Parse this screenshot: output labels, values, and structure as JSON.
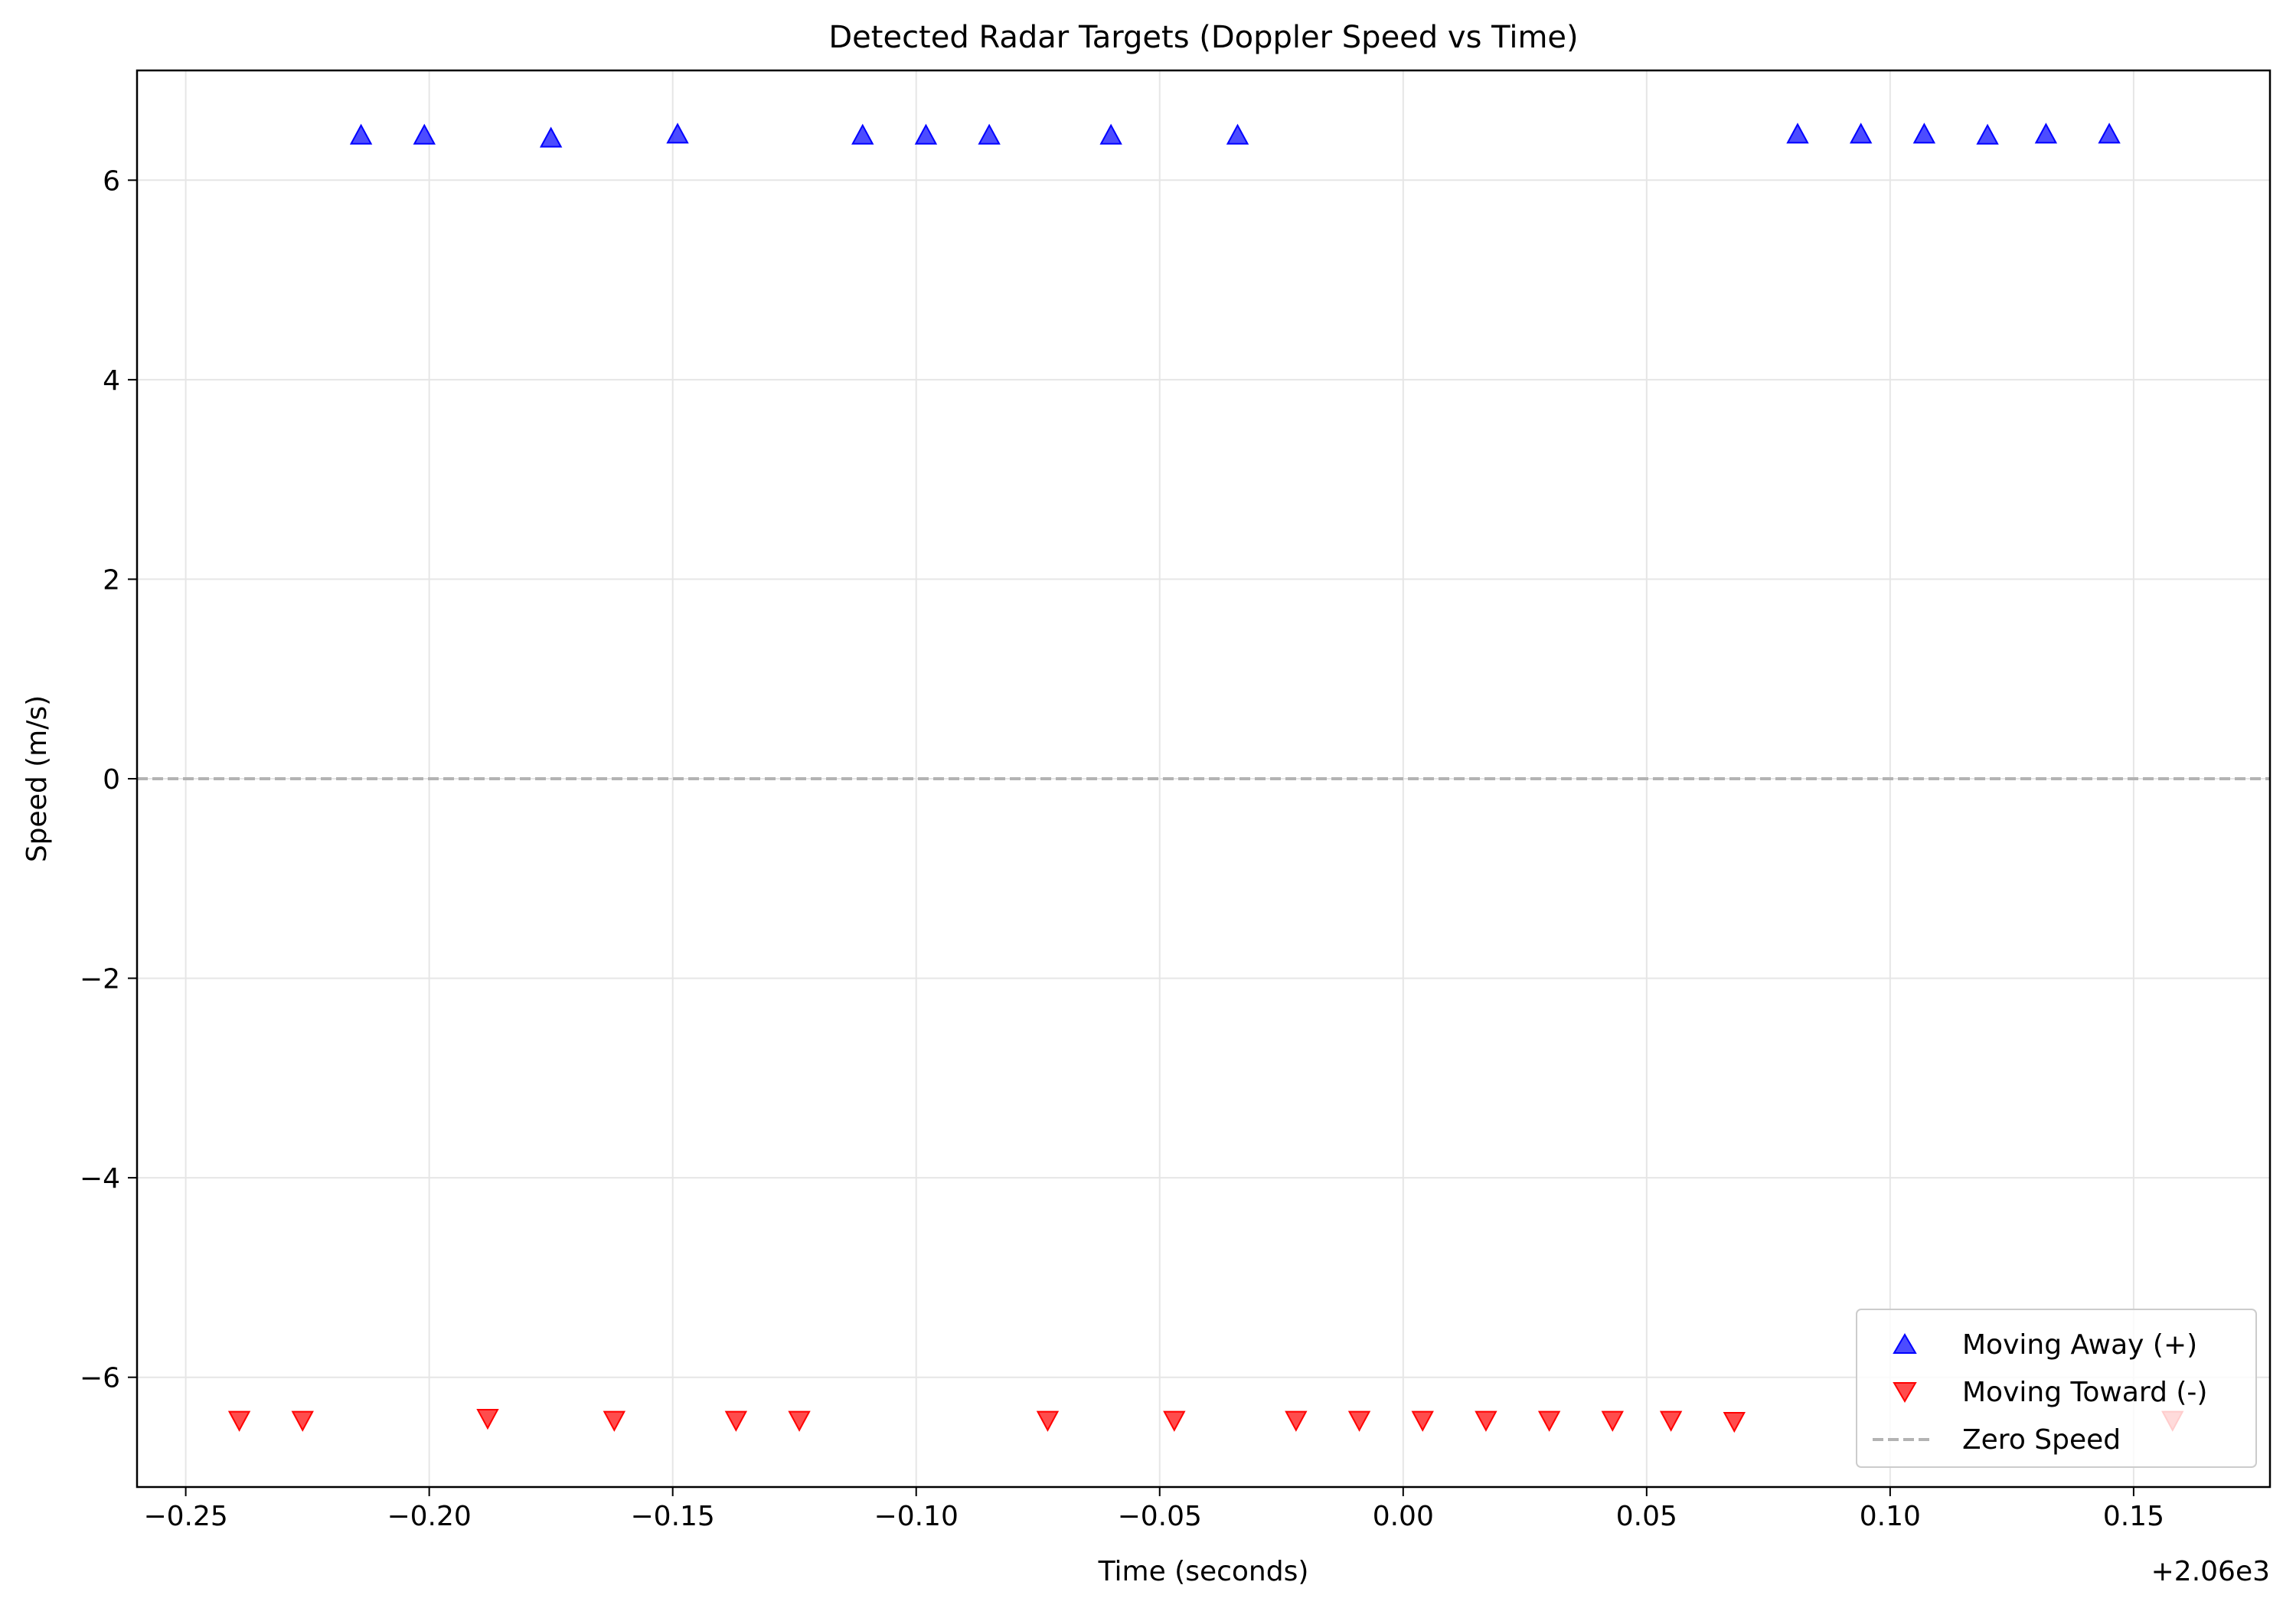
{
  "chart_data": {
    "type": "scatter",
    "title": "Detected Radar Targets (Doppler Speed vs Time)",
    "xlabel": "Time (seconds)",
    "ylabel": "Speed (m/s)",
    "x_offset_label": "+2.06e3",
    "xlim": [
      -0.26,
      0.178
    ],
    "ylim": [
      -7.1,
      7.1
    ],
    "x_ticks": [
      {
        "value": -0.25,
        "label": "−0.25"
      },
      {
        "value": -0.2,
        "label": "−0.20"
      },
      {
        "value": -0.15,
        "label": "−0.15"
      },
      {
        "value": -0.1,
        "label": "−0.10"
      },
      {
        "value": -0.05,
        "label": "−0.05"
      },
      {
        "value": 0.0,
        "label": "0.00"
      },
      {
        "value": 0.05,
        "label": "0.05"
      },
      {
        "value": 0.1,
        "label": "0.10"
      },
      {
        "value": 0.15,
        "label": "0.15"
      }
    ],
    "y_ticks": [
      {
        "value": 6,
        "label": "6"
      },
      {
        "value": 4,
        "label": "4"
      },
      {
        "value": 2,
        "label": "2"
      },
      {
        "value": 0,
        "label": "0"
      },
      {
        "value": -2,
        "label": "−2"
      },
      {
        "value": -4,
        "label": "−4"
      },
      {
        "value": -6,
        "label": "−6"
      }
    ],
    "grid": true,
    "legend_position": "bottom-right",
    "series": [
      {
        "name": "Moving Away (+)",
        "marker": "triangle-up",
        "color": "#0000ff",
        "points": [
          {
            "x": -0.214,
            "y": 6.45
          },
          {
            "x": -0.201,
            "y": 6.45
          },
          {
            "x": -0.175,
            "y": 6.42
          },
          {
            "x": -0.149,
            "y": 6.46
          },
          {
            "x": -0.111,
            "y": 6.45
          },
          {
            "x": -0.098,
            "y": 6.45
          },
          {
            "x": -0.085,
            "y": 6.45
          },
          {
            "x": -0.06,
            "y": 6.45
          },
          {
            "x": -0.034,
            "y": 6.45
          },
          {
            "x": 0.081,
            "y": 6.46
          },
          {
            "x": 0.094,
            "y": 6.46
          },
          {
            "x": 0.107,
            "y": 6.46
          },
          {
            "x": 0.12,
            "y": 6.45
          },
          {
            "x": 0.132,
            "y": 6.46
          },
          {
            "x": 0.145,
            "y": 6.46
          }
        ]
      },
      {
        "name": "Moving Toward (-)",
        "marker": "triangle-down",
        "color": "#ff0000",
        "points": [
          {
            "x": -0.239,
            "y": -6.43
          },
          {
            "x": -0.226,
            "y": -6.43
          },
          {
            "x": -0.188,
            "y": -6.41
          },
          {
            "x": -0.162,
            "y": -6.43
          },
          {
            "x": -0.137,
            "y": -6.43
          },
          {
            "x": -0.124,
            "y": -6.43
          },
          {
            "x": -0.073,
            "y": -6.43
          },
          {
            "x": -0.047,
            "y": -6.43
          },
          {
            "x": -0.022,
            "y": -6.43
          },
          {
            "x": -0.009,
            "y": -6.43
          },
          {
            "x": 0.004,
            "y": -6.43
          },
          {
            "x": 0.017,
            "y": -6.43
          },
          {
            "x": 0.03,
            "y": -6.43
          },
          {
            "x": 0.043,
            "y": -6.43
          },
          {
            "x": 0.055,
            "y": -6.43
          },
          {
            "x": 0.068,
            "y": -6.44
          },
          {
            "x": 0.158,
            "y": -6.43
          }
        ]
      }
    ],
    "reference_line": {
      "name": "Zero Speed",
      "y": 0,
      "style": "dashed",
      "color": "#b3b3b3"
    }
  }
}
